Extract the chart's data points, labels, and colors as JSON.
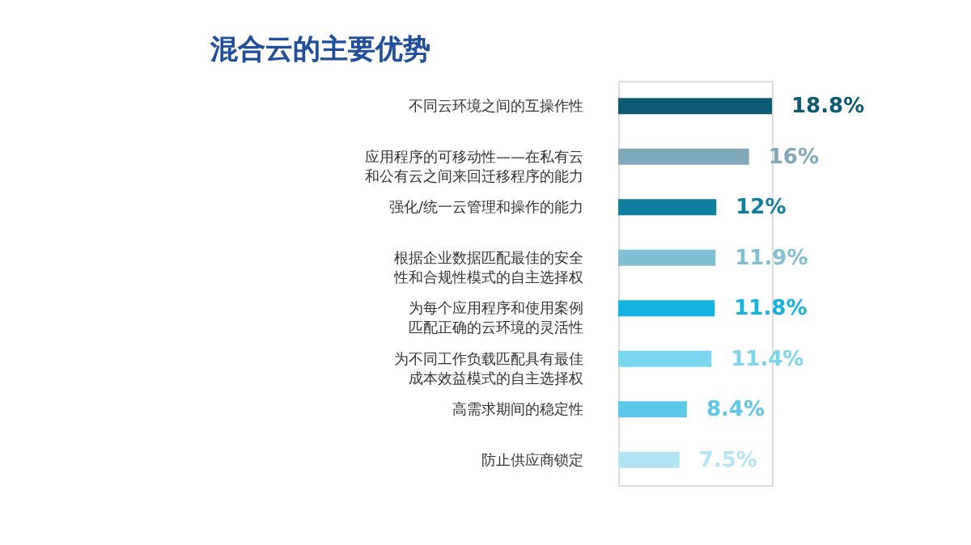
{
  "chart_data": {
    "type": "bar",
    "orientation": "horizontal",
    "title": "混合云的主要优势",
    "categories": [
      "不同云环境之间的互操作性",
      "应用程序的可移动性——在私有云和公有云之间来回迁移程序的能力",
      "强化/统一云管理和操作的能力",
      "根据企业数据匹配最佳的安全性和合规性模式的自主选择权",
      "为每个应用程序和使用案例匹配正确的云环境的灵活性",
      "为不同工作负载匹配具有最佳成本效益模式的自主选择权",
      "高需求期间的稳定性",
      "防止供应商锁定"
    ],
    "values": [
      18.8,
      16,
      12,
      11.9,
      11.8,
      11.4,
      8.4,
      7.5
    ],
    "value_labels": [
      "18.8%",
      "16%",
      "12%",
      "11.9%",
      "11.8%",
      "11.4%",
      "8.4%",
      "7.5%"
    ],
    "colors": [
      "#0d5a73",
      "#7fa9b8",
      "#0e7f9e",
      "#80bfd2",
      "#14b2e0",
      "#7ad6ef",
      "#5bc8ea",
      "#b3e4f3"
    ]
  }
}
